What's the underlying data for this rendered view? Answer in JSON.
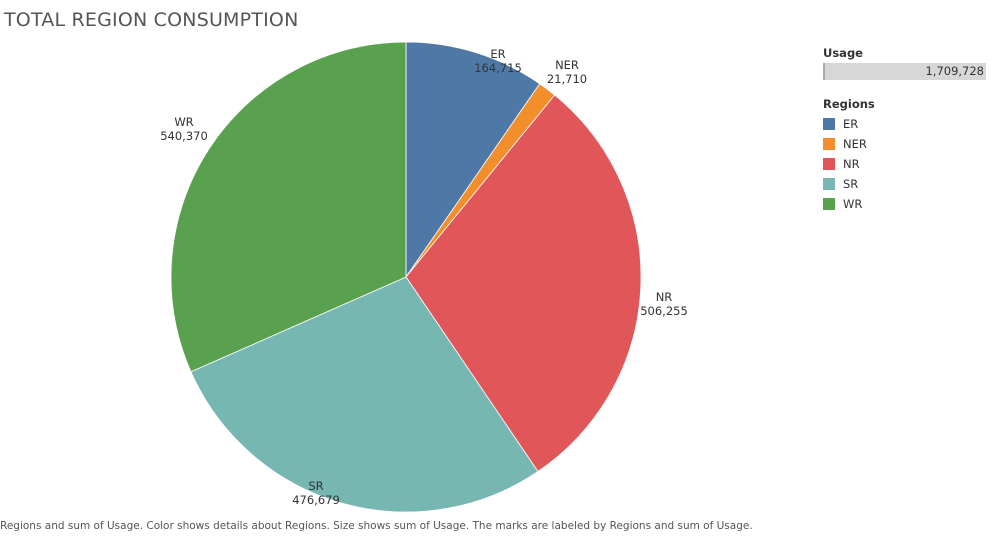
{
  "chart_data": {
    "type": "pie",
    "title": "TOTAL REGION CONSUMPTION",
    "slices": [
      {
        "label": "ER",
        "value": 164715,
        "value_text": "164,715",
        "color": "#4e79a7"
      },
      {
        "label": "NER",
        "value": 21710,
        "value_text": "21,710",
        "color": "#f28e2b"
      },
      {
        "label": "NR",
        "value": 506255,
        "value_text": "506,255",
        "color": "#e15759"
      },
      {
        "label": "SR",
        "value": 476679,
        "value_text": "476,679",
        "color": "#76b7b2"
      },
      {
        "label": "WR",
        "value": 540370,
        "value_text": "540,370",
        "color": "#59a14f"
      }
    ],
    "legend": {
      "placement": "right",
      "size_heading": "Usage",
      "size_value": "1,709,728",
      "color_heading": "Regions"
    },
    "caption": "Regions and sum of Usage.  Color shows details about Regions.  Size shows sum of Usage.  The marks are labeled by Regions and sum of Usage."
  }
}
